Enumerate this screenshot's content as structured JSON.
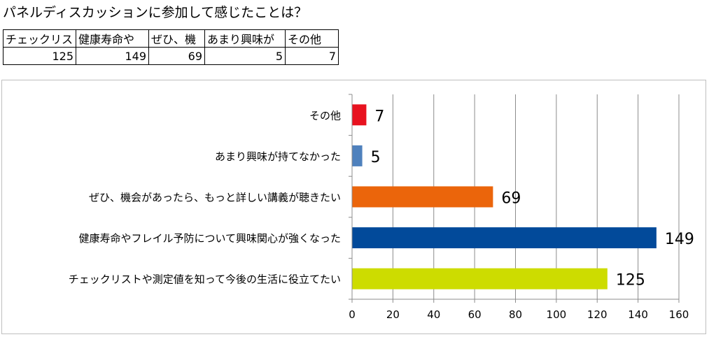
{
  "title": "パネルディスカッションに参加して感じたことは？",
  "table": {
    "headers": [
      "チェックリス",
      "健康寿命や",
      "ぜひ、機",
      "あまり興味が",
      "その他"
    ],
    "values": [
      "125",
      "149",
      "69",
      "5",
      "7"
    ]
  },
  "chart_data": {
    "type": "bar",
    "orientation": "horizontal",
    "categories": [
      "その他",
      "あまり興味が持てなかった",
      "ぜひ、機会があったら、もっと詳しい講義が聴きたい",
      "健康寿命やフレイル予防について興味関心が強くなった",
      "チェックリストや測定値を知って今後の生活に役立てたい"
    ],
    "values": [
      7,
      5,
      69,
      149,
      125
    ],
    "colors": [
      "#e8121f",
      "#4f81bd",
      "#eb650b",
      "#024a9a",
      "#cddc00"
    ],
    "xlim": [
      0,
      160
    ],
    "xticks": [
      "0",
      "20",
      "40",
      "60",
      "80",
      "100",
      "120",
      "140",
      "160"
    ],
    "grid": true,
    "legend": "none"
  }
}
